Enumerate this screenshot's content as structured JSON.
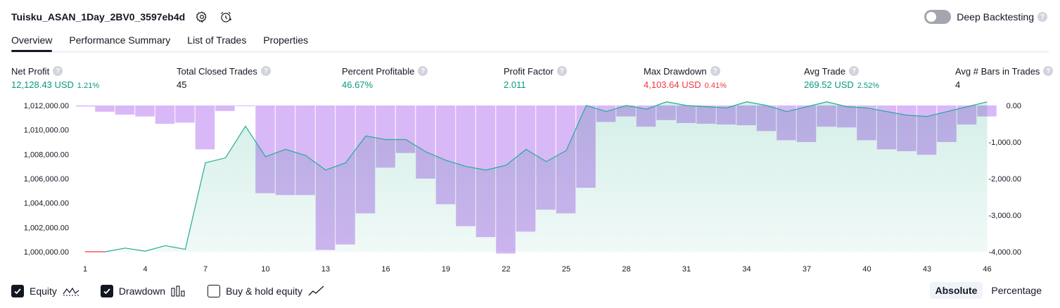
{
  "header": {
    "title": "Tuisku_ASAN_1Day_2BV0_3597eb4d",
    "deep_backtesting_label": "Deep Backtesting"
  },
  "tabs": [
    {
      "label": "Overview",
      "active": true
    },
    {
      "label": "Performance Summary"
    },
    {
      "label": "List of Trades"
    },
    {
      "label": "Properties"
    }
  ],
  "metrics": {
    "net_profit": {
      "label": "Net Profit",
      "value": "12,128.43 USD",
      "pct": "1.21%"
    },
    "total_closed_trades": {
      "label": "Total Closed Trades",
      "value": "45"
    },
    "percent_profitable": {
      "label": "Percent Profitable",
      "value": "46.67%"
    },
    "profit_factor": {
      "label": "Profit Factor",
      "value": "2.011"
    },
    "max_drawdown": {
      "label": "Max Drawdown",
      "value": "4,103.64 USD",
      "pct": "0.41%"
    },
    "avg_trade": {
      "label": "Avg Trade",
      "value": "269.52 USD",
      "pct": "2.52%"
    },
    "avg_bars": {
      "label": "Avg # Bars in Trades",
      "value": "4"
    }
  },
  "footer": {
    "equity_label": "Equity",
    "drawdown_label": "Drawdown",
    "buyhold_label": "Buy & hold equity",
    "scale_absolute": "Absolute",
    "scale_percentage": "Percentage"
  },
  "colors": {
    "equity_line": "#22ab94",
    "equity_fill": "#cdece4",
    "equity_negative": "#f23645",
    "drawdown_bar": "#d9b8f7",
    "drawdown_overlap": "#b9a8ed"
  },
  "chart_data": {
    "type": "line",
    "x_ticks": [
      "1",
      "4",
      "7",
      "10",
      "13",
      "16",
      "19",
      "22",
      "25",
      "28",
      "31",
      "34",
      "37",
      "40",
      "43",
      "46"
    ],
    "y_left_ticks": [
      "1,000,000.00",
      "1,002,000.00",
      "1,004,000.00",
      "1,006,000.00",
      "1,008,000.00",
      "1,010,000.00",
      "1,012,000.00"
    ],
    "y_right_ticks": [
      "0.00",
      "-1,000.00",
      "-2,000.00",
      "-3,000.00",
      "-4,000.00"
    ],
    "y_left_range": [
      1000000,
      1012000
    ],
    "y_right_range": [
      -4000,
      0
    ],
    "series": [
      {
        "name": "Equity",
        "x": [
          1,
          2,
          3,
          4,
          5,
          6,
          7,
          8,
          9,
          10,
          11,
          12,
          13,
          14,
          15,
          16,
          17,
          18,
          19,
          20,
          21,
          22,
          23,
          24,
          25,
          26,
          27,
          28,
          29,
          30,
          31,
          32,
          33,
          34,
          35,
          36,
          37,
          38,
          39,
          40,
          41,
          42,
          43,
          44,
          45,
          46
        ],
        "values": [
          1000000,
          1000000,
          1000300,
          1000050,
          1000500,
          1000200,
          1007300,
          1007700,
          1010300,
          1007800,
          1008400,
          1007900,
          1006700,
          1007300,
          1009500,
          1009200,
          1009200,
          1008200,
          1007500,
          1007000,
          1006700,
          1007100,
          1008400,
          1007400,
          1008300,
          1012000,
          1011500,
          1012000,
          1011700,
          1012300,
          1012000,
          1011900,
          1011800,
          1012300,
          1012000,
          1011500,
          1011900,
          1012300,
          1011900,
          1011800,
          1011500,
          1011200,
          1011100,
          1011500,
          1011900,
          1012300
        ]
      },
      {
        "name": "Drawdown",
        "x": [
          2,
          3,
          4,
          5,
          6,
          7,
          8,
          9,
          10,
          11,
          12,
          13,
          14,
          15,
          16,
          17,
          18,
          19,
          20,
          21,
          22,
          23,
          24,
          25,
          26,
          27,
          28,
          29,
          30,
          31,
          32,
          33,
          34,
          35,
          36,
          37,
          38,
          39,
          40,
          41,
          42,
          43,
          44,
          45,
          46
        ],
        "values": [
          -170,
          -250,
          -300,
          -500,
          -470,
          -1200,
          -150,
          -20,
          -2400,
          -2450,
          -2450,
          -3950,
          -3800,
          -2950,
          -1700,
          -1300,
          -2000,
          -2700,
          -3300,
          -3600,
          -4050,
          -3450,
          -2850,
          -2950,
          -2250,
          -450,
          -300,
          -580,
          -400,
          -480,
          -500,
          -520,
          -540,
          -700,
          -950,
          -1000,
          -580,
          -600,
          -950,
          -1200,
          -1250,
          -1350,
          -1000,
          -520,
          -300
        ]
      }
    ]
  }
}
